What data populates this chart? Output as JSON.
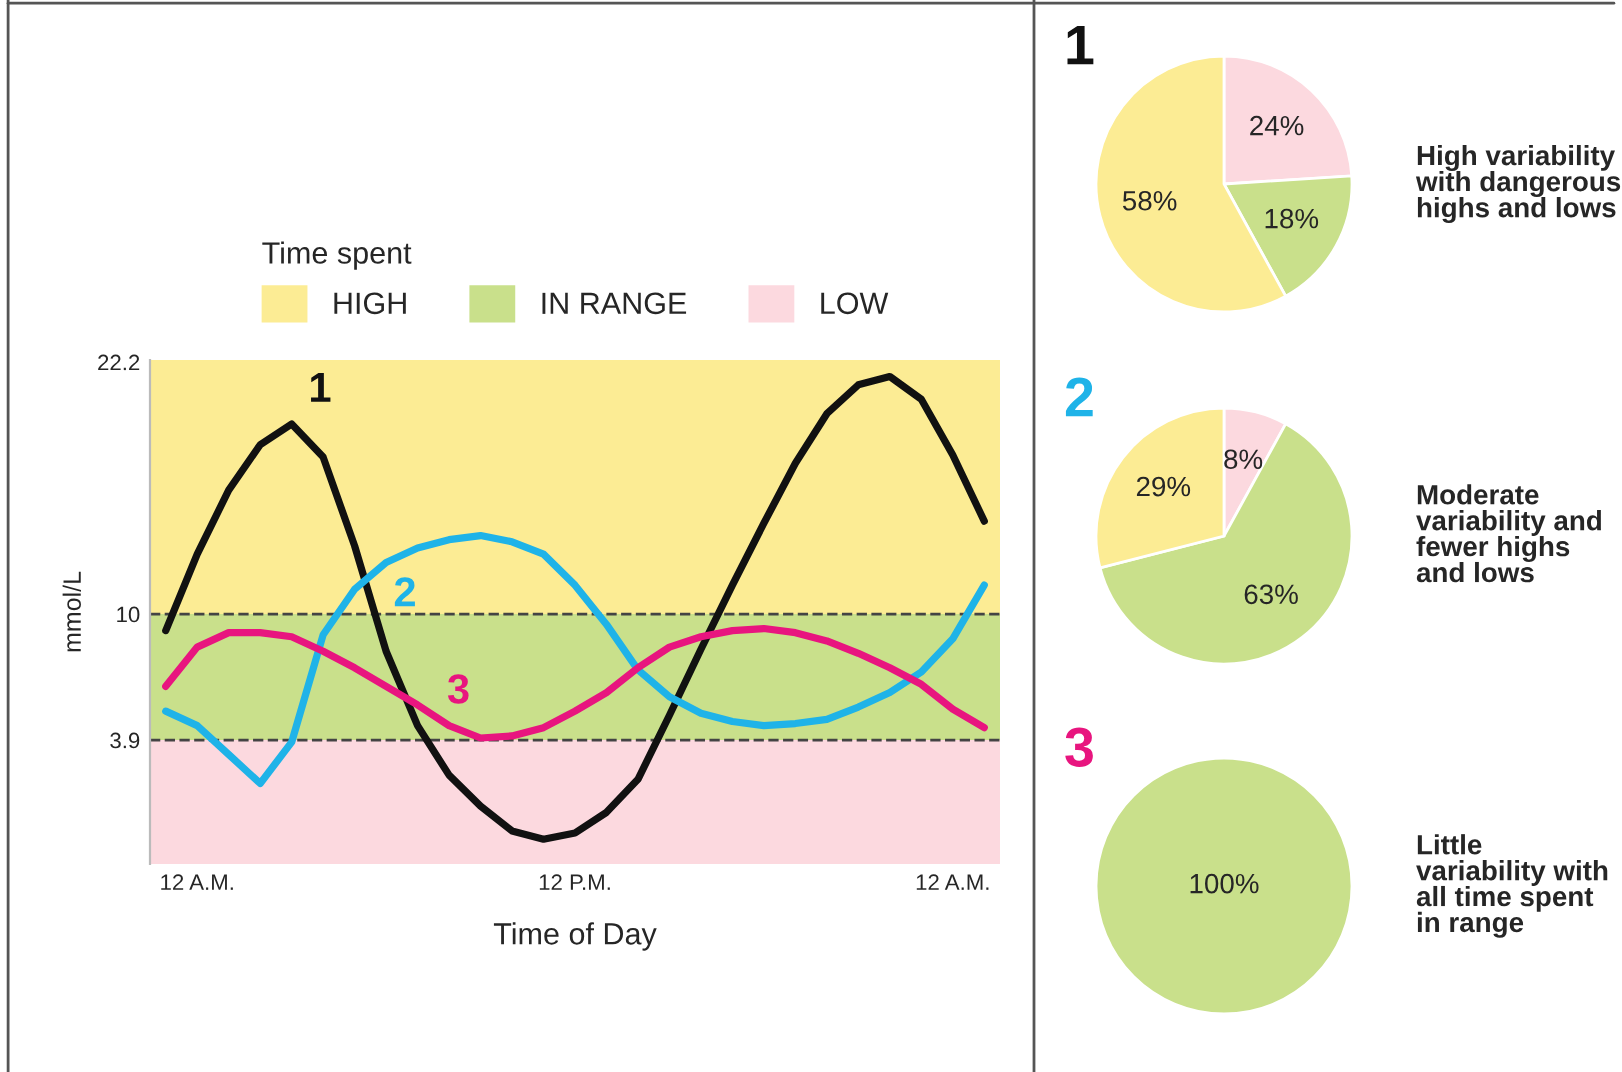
{
  "chart_data": [
    {
      "type": "line",
      "xlabel": "Time of Day",
      "ylabel": "mmol/L",
      "legend_title": "Time spent",
      "legend": "top",
      "grid": false,
      "line_style": "solid",
      "marker": "none",
      "categories": [
        null,
        "12 A.M.",
        null,
        null,
        null,
        null,
        null,
        null,
        null,
        null,
        null,
        null,
        null,
        "12 P.M.",
        null,
        null,
        null,
        null,
        null,
        null,
        null,
        null,
        null,
        null,
        null,
        "12 A.M.",
        null
      ],
      "ylim": [
        -2.1,
        22.3
      ],
      "yticks": [
        3.9,
        10,
        22.2
      ],
      "series": [
        {
          "name": "1",
          "color": "#111111",
          "values": [
            9.2,
            12.9,
            16.0,
            18.2,
            19.2,
            17.6,
            13.3,
            8.2,
            4.6,
            2.2,
            0.7,
            -0.5,
            -0.9,
            -0.6,
            0.4,
            2.0,
            5.1,
            8.3,
            11.4,
            14.4,
            17.3,
            19.7,
            21.1,
            21.5,
            20.4,
            17.7,
            14.5
          ]
        },
        {
          "name": "2",
          "color": "#1fb3e8",
          "values": [
            5.3,
            4.6,
            3.2,
            1.8,
            3.8,
            9.0,
            11.2,
            12.5,
            13.2,
            13.6,
            13.8,
            13.5,
            12.9,
            11.4,
            9.5,
            7.3,
            6.0,
            5.2,
            4.8,
            4.6,
            4.7,
            4.9,
            5.5,
            6.2,
            7.2,
            8.8,
            11.4
          ]
        },
        {
          "name": "3",
          "color": "#e8157f",
          "values": [
            6.5,
            8.4,
            9.1,
            9.1,
            8.9,
            8.2,
            7.4,
            6.5,
            5.6,
            4.6,
            4.0,
            4.1,
            4.5,
            5.3,
            6.2,
            7.4,
            8.4,
            8.9,
            9.2,
            9.3,
            9.1,
            8.7,
            8.1,
            7.4,
            6.6,
            5.4,
            4.5
          ]
        }
      ],
      "bands": [
        {
          "axis": "y",
          "from": 10,
          "to": 22.3,
          "label": "HIGH",
          "color": "#fcec94"
        },
        {
          "axis": "y",
          "from": 3.9,
          "to": 10,
          "label": "IN RANGE",
          "color": "#c9e08b"
        },
        {
          "axis": "y",
          "from": -2.1,
          "to": 3.9,
          "label": "LOW",
          "color": "#fcd9df"
        }
      ],
      "ref_lines": [
        {
          "axis": "y",
          "value": 10,
          "line_style": "dashed",
          "color": "#444444"
        },
        {
          "axis": "y",
          "value": 3.9,
          "line_style": "dashed",
          "color": "#444444"
        }
      ]
    },
    {
      "type": "pie",
      "title": "1",
      "categories": [
        null,
        null,
        null
      ],
      "values": [
        24,
        18,
        58
      ],
      "colors": [
        "#fcd9df",
        "#c9e08b",
        "#fcec94"
      ],
      "value_labels": [
        "24%",
        "18%",
        "58%"
      ],
      "annotations": [
        "High variability\nwith dangerous\nhighs and lows"
      ]
    },
    {
      "type": "pie",
      "title": "2",
      "categories": [
        null,
        null,
        null
      ],
      "values": [
        8,
        63,
        29
      ],
      "colors": [
        "#fcd9df",
        "#c9e08b",
        "#fcec94"
      ],
      "value_labels": [
        "8%",
        "63%",
        "29%"
      ],
      "annotations": [
        "Moderate\nvariability and\nfewer highs\nand lows"
      ]
    },
    {
      "type": "pie",
      "title": "3",
      "categories": [
        null
      ],
      "values": [
        100
      ],
      "colors": [
        "#c9e08b"
      ],
      "value_labels": [
        "100%"
      ],
      "annotations": [
        "Little\nvariability with\nall time spent\nin range"
      ]
    }
  ]
}
